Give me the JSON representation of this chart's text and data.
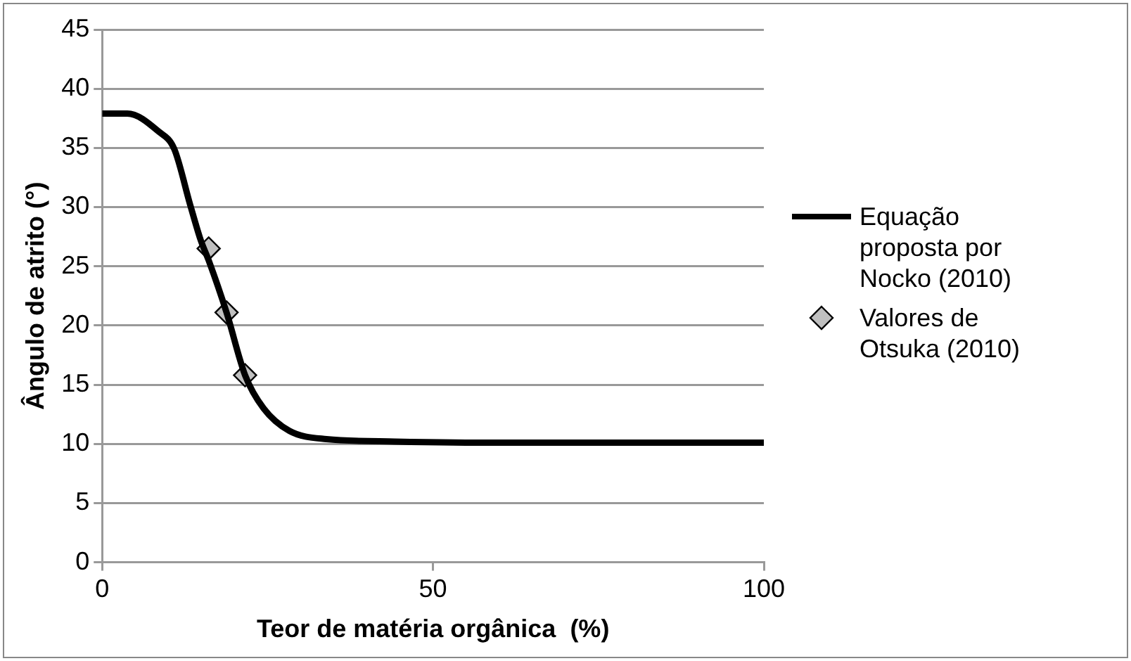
{
  "chart_data": {
    "type": "line",
    "xlabel": "Teor de matéria orgânica  (%)",
    "ylabel": "Ângulo de atrito (°)",
    "xlim": [
      0,
      100
    ],
    "xticks": [
      0,
      50,
      100
    ],
    "ylim": [
      0,
      45
    ],
    "yticks": [
      0,
      5,
      10,
      15,
      20,
      25,
      30,
      35,
      40,
      45
    ],
    "grid": "y",
    "legend": "right",
    "series": [
      {
        "name": "Equação proposta por Nocko (2010)",
        "type": "line",
        "color": "#000000",
        "marker": "none",
        "line_style": "solid",
        "x": [
          0,
          3.8,
          8.5,
          10.9,
          13.3,
          14.9,
          16.1,
          18.8,
          21.6,
          24.4,
          28.3,
          33.9,
          44.2,
          60,
          80,
          100
        ],
        "values": [
          37.9,
          37.9,
          36.4,
          34.9,
          30.2,
          27.2,
          25.5,
          21.1,
          15.8,
          13.0,
          11.1,
          10.4,
          10.2,
          10.1,
          10.1,
          10.1
        ]
      },
      {
        "name": "Valores de Otsuka (2010)",
        "type": "scatter",
        "color": "#c0c0c0",
        "marker": "diamond",
        "x": [
          16.1,
          18.8,
          21.6
        ],
        "values": [
          26.5,
          21.1,
          15.8
        ]
      }
    ]
  }
}
